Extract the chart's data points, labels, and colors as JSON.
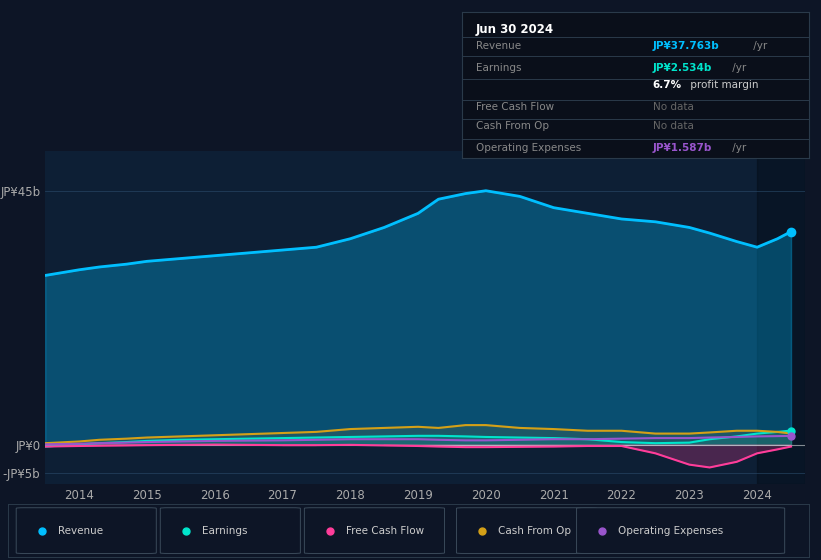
{
  "background_color": "#0d1526",
  "plot_bg_color": "#0d1f35",
  "grid_color": "#1e3a5f",
  "years": [
    2013.5,
    2014.0,
    2014.3,
    2014.7,
    2015.0,
    2015.5,
    2016.0,
    2016.5,
    2017.0,
    2017.5,
    2018.0,
    2018.5,
    2019.0,
    2019.3,
    2019.7,
    2020.0,
    2020.5,
    2021.0,
    2021.5,
    2022.0,
    2022.5,
    2023.0,
    2023.3,
    2023.7,
    2024.0,
    2024.3,
    2024.5
  ],
  "revenue": [
    30,
    31,
    31.5,
    32,
    32.5,
    33.0,
    33.5,
    34.0,
    34.5,
    35.0,
    36.5,
    38.5,
    41.0,
    43.5,
    44.5,
    45.0,
    44.0,
    42.0,
    41.0,
    40.0,
    39.5,
    38.5,
    37.5,
    36.0,
    35.0,
    36.5,
    37.763
  ],
  "earnings": [
    -0.3,
    0.1,
    0.3,
    0.5,
    0.7,
    0.9,
    1.0,
    1.1,
    1.2,
    1.3,
    1.4,
    1.5,
    1.6,
    1.6,
    1.5,
    1.4,
    1.3,
    1.2,
    1.0,
    0.5,
    0.3,
    0.4,
    1.0,
    1.5,
    2.0,
    2.3,
    2.534
  ],
  "free_cash_flow": [
    -0.3,
    -0.2,
    -0.15,
    -0.1,
    -0.05,
    0.0,
    0.05,
    0.0,
    -0.05,
    -0.05,
    0.0,
    -0.1,
    -0.2,
    -0.3,
    -0.4,
    -0.4,
    -0.35,
    -0.3,
    -0.2,
    -0.2,
    -1.5,
    -3.5,
    -4.0,
    -3.0,
    -1.5,
    -0.8,
    -0.3
  ],
  "cash_from_op": [
    0.3,
    0.6,
    0.9,
    1.1,
    1.3,
    1.5,
    1.7,
    1.9,
    2.1,
    2.3,
    2.8,
    3.0,
    3.2,
    3.0,
    3.5,
    3.5,
    3.0,
    2.8,
    2.5,
    2.5,
    2.0,
    2.0,
    2.2,
    2.5,
    2.5,
    2.3,
    2.0
  ],
  "operating_expenses": [
    0.1,
    0.2,
    0.3,
    0.4,
    0.5,
    0.6,
    0.7,
    0.75,
    0.8,
    0.9,
    1.0,
    1.0,
    1.0,
    0.9,
    0.8,
    0.8,
    0.9,
    1.0,
    1.0,
    1.1,
    1.2,
    1.2,
    1.3,
    1.4,
    1.5,
    1.55,
    1.587
  ],
  "revenue_color": "#00bfff",
  "earnings_color": "#00e5cc",
  "free_cash_flow_color": "#ff3d9a",
  "cash_from_op_color": "#d4a017",
  "operating_expenses_color": "#9955cc",
  "xlim": [
    2013.5,
    2024.7
  ],
  "ylim": [
    -7,
    52
  ],
  "yticks": [
    -5,
    0,
    45
  ],
  "ytick_labels": [
    "-JP¥5b",
    "JP¥0",
    "JP¥45b"
  ],
  "xticks": [
    2014,
    2015,
    2016,
    2017,
    2018,
    2019,
    2020,
    2021,
    2022,
    2023,
    2024
  ],
  "tooltip_title": "Jun 30 2024",
  "tooltip_revenue_label": "Revenue",
  "tooltip_revenue_value": "JP¥37.763b",
  "tooltip_revenue_suffix": " /yr",
  "tooltip_earnings_label": "Earnings",
  "tooltip_earnings_value": "JP¥2.534b",
  "tooltip_earnings_suffix": " /yr",
  "tooltip_margin": "6.7%",
  "tooltip_margin_suffix": " profit margin",
  "tooltip_fcf_label": "Free Cash Flow",
  "tooltip_fcf_value": "No data",
  "tooltip_cfo_label": "Cash From Op",
  "tooltip_cfo_value": "No data",
  "tooltip_opex_label": "Operating Expenses",
  "tooltip_opex_value": "JP¥1.587b",
  "tooltip_opex_suffix": " /yr",
  "legend_items": [
    "Revenue",
    "Earnings",
    "Free Cash Flow",
    "Cash From Op",
    "Operating Expenses"
  ],
  "legend_colors": [
    "#00bfff",
    "#00e5cc",
    "#ff3d9a",
    "#d4a017",
    "#9955cc"
  ],
  "highlight_x_start": 2024.0
}
